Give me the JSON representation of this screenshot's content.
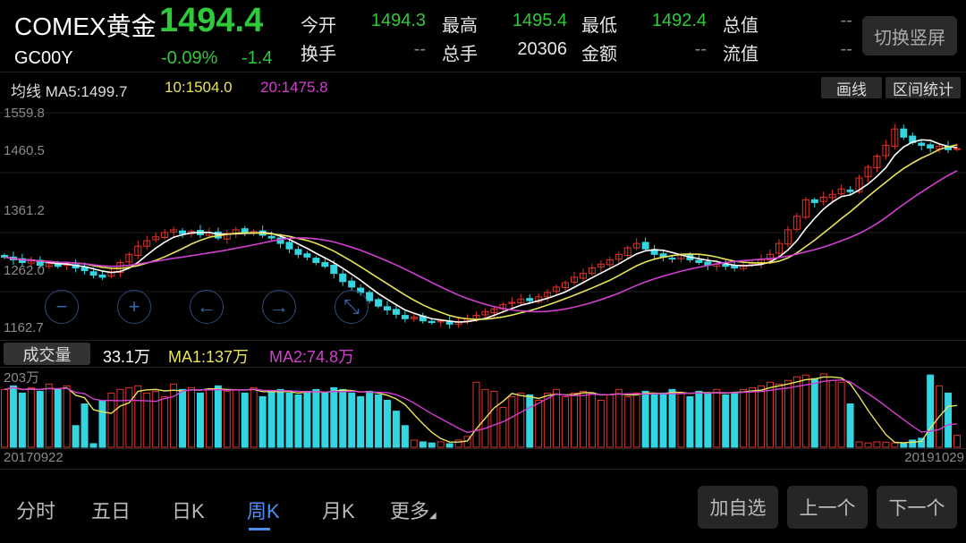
{
  "header": {
    "name": "COMEX黄金",
    "code": "GC00Y",
    "price": "1494.4",
    "change_pct": "-0.09%",
    "change": "-1.4",
    "stats": [
      {
        "label": "今开",
        "value": "1494.3",
        "color": "#2fc93b"
      },
      {
        "label": "最高",
        "value": "1495.4",
        "color": "#2fc93b"
      },
      {
        "label": "最低",
        "value": "1492.4",
        "color": "#2fc93b"
      },
      {
        "label": "总值",
        "value": "--",
        "color": "#888888"
      },
      {
        "label": "换手",
        "value": "--",
        "color": "#888888"
      },
      {
        "label": "总手",
        "value": "20306",
        "color": "#e6e6e6"
      },
      {
        "label": "金额",
        "value": "--",
        "color": "#888888"
      },
      {
        "label": "流值",
        "value": "--",
        "color": "#888888"
      }
    ],
    "switch_button": "切换竖屏"
  },
  "ma_bar": {
    "label": "均线 MA5:1499.7",
    "ma10": "10:1504.0",
    "ma20": "20:1475.8",
    "draw_button": "画线",
    "range_button": "区间统计"
  },
  "price_axis": [
    "1559.8",
    "1460.5",
    "1361.2",
    "1262.0",
    "1162.7"
  ],
  "controls": [
    "zoom-out",
    "zoom-in",
    "left",
    "right",
    "collapse"
  ],
  "volume_bar": {
    "label": "成交量",
    "value": "33.1万",
    "ma1": "MA1:137万",
    "ma2": "MA2:74.8万",
    "max": "203万"
  },
  "dates": {
    "start": "20170922",
    "end": "20191029"
  },
  "colors": {
    "up": "#e0342b",
    "down": "#33d6e0",
    "ma5": "#ffffff",
    "ma10": "#e8e35a",
    "ma20": "#d23fd0"
  },
  "chart_data": {
    "type": "candlestick",
    "ylim": [
      1162.7,
      1559.8
    ],
    "closes": [
      1295,
      1290,
      1285,
      1288,
      1280,
      1283,
      1278,
      1282,
      1275,
      1270,
      1262,
      1258,
      1268,
      1285,
      1300,
      1315,
      1325,
      1332,
      1340,
      1345,
      1338,
      1342,
      1336,
      1340,
      1330,
      1338,
      1345,
      1340,
      1342,
      1335,
      1330,
      1320,
      1310,
      1300,
      1295,
      1285,
      1278,
      1265,
      1250,
      1240,
      1230,
      1215,
      1205,
      1198,
      1190,
      1182,
      1185,
      1178,
      1175,
      1178,
      1172,
      1176,
      1182,
      1188,
      1195,
      1200,
      1208,
      1212,
      1218,
      1215,
      1222,
      1230,
      1240,
      1248,
      1258,
      1265,
      1275,
      1282,
      1290,
      1300,
      1312,
      1320,
      1310,
      1300,
      1295,
      1292,
      1298,
      1290,
      1285,
      1280,
      1282,
      1278,
      1275,
      1280,
      1285,
      1290,
      1300,
      1320,
      1345,
      1370,
      1400,
      1395,
      1405,
      1410,
      1420,
      1415,
      1440,
      1460,
      1480,
      1500,
      1530,
      1515,
      1505,
      1500,
      1495,
      1498,
      1492,
      1494
    ],
    "volumes_wan": [
      160,
      170,
      150,
      165,
      155,
      175,
      160,
      170,
      60,
      120,
      10,
      130,
      150,
      160,
      165,
      170,
      150,
      155,
      140,
      175,
      160,
      165,
      150,
      160,
      170,
      155,
      160,
      150,
      165,
      140,
      155,
      160,
      150,
      145,
      155,
      160,
      150,
      165,
      160,
      150,
      140,
      155,
      145,
      130,
      100,
      60,
      20,
      15,
      12,
      15,
      10,
      20,
      30,
      180,
      160,
      155,
      110,
      140,
      150,
      145,
      130,
      150,
      160,
      140,
      150,
      155,
      150,
      130,
      145,
      160,
      140,
      150,
      155,
      145,
      150,
      160,
      150,
      140,
      155,
      150,
      160,
      145,
      150,
      160,
      165,
      170,
      180,
      175,
      185,
      195,
      200,
      190,
      203,
      185,
      180,
      120,
      15,
      12,
      15,
      14,
      12,
      10,
      20,
      25,
      200,
      170,
      150,
      33.1
    ],
    "vol_max": 203
  },
  "bottom": {
    "tabs": [
      "分时",
      "五日",
      "日K",
      "周K",
      "月K",
      "更多"
    ],
    "active": 3,
    "buttons": [
      "加自选",
      "上一个",
      "下一个"
    ]
  }
}
